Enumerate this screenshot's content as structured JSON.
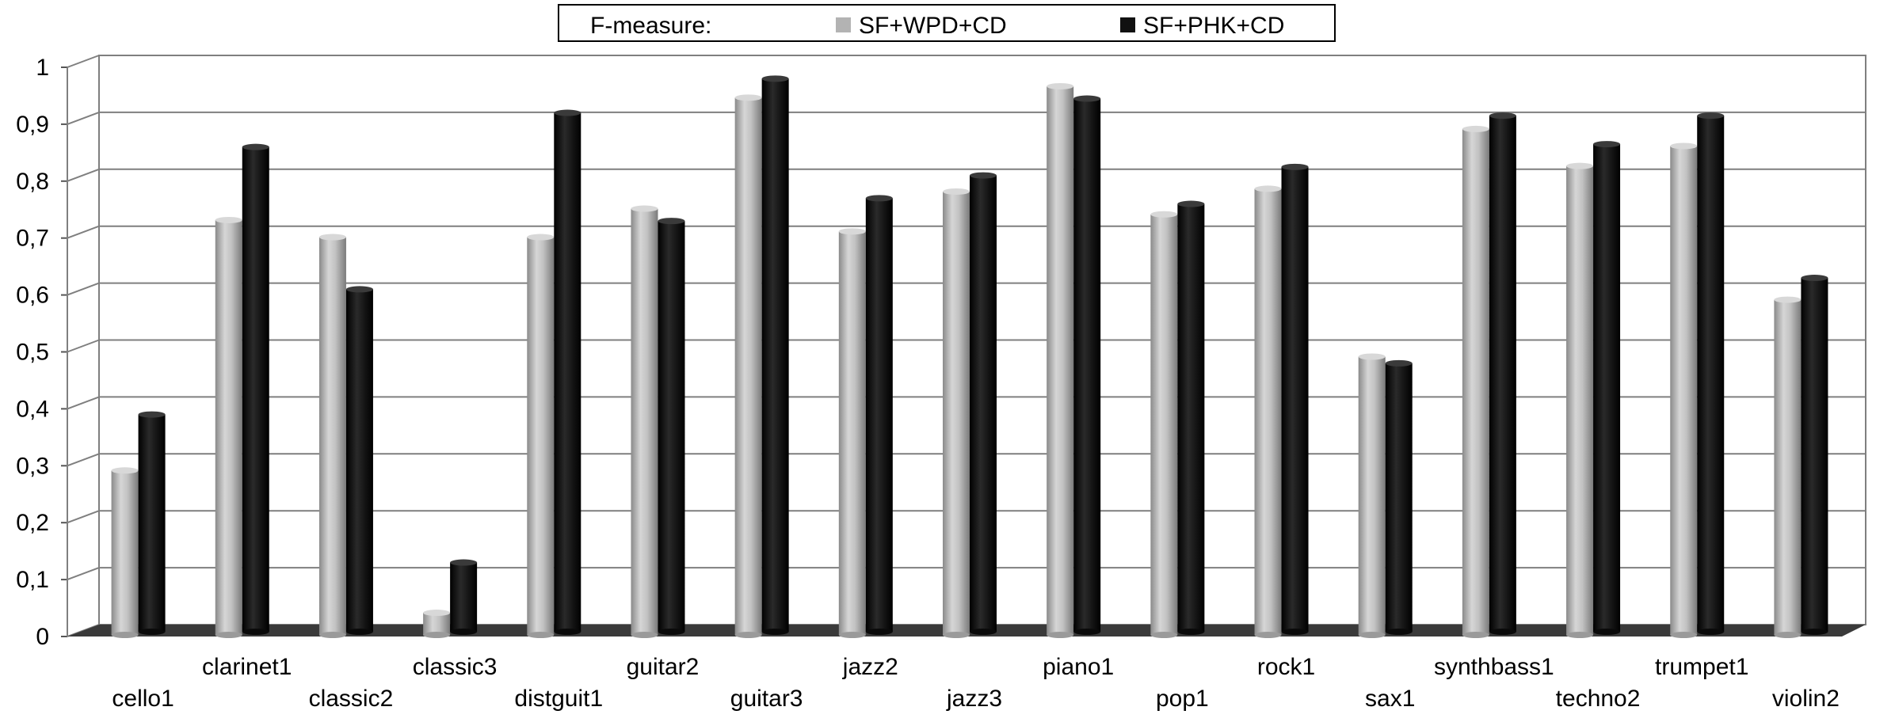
{
  "chart_data": {
    "type": "bar",
    "legend": {
      "label": "F-measure:",
      "placement": "top-center"
    },
    "categories": [
      "cello1",
      "clarinet1",
      "classic2",
      "classic3",
      "distguit1",
      "guitar2",
      "guitar3",
      "jazz2",
      "jazz3",
      "piano1",
      "pop1",
      "rock1",
      "sax1",
      "synthbass1",
      "techno2",
      "trumpet1",
      "violin2"
    ],
    "series": [
      {
        "name": "SF+WPD+CD",
        "color": "#b3b3b3",
        "values": [
          0.3,
          0.74,
          0.71,
          0.05,
          0.71,
          0.76,
          0.955,
          0.72,
          0.79,
          0.975,
          0.75,
          0.795,
          0.5,
          0.9,
          0.835,
          0.87,
          0.6
        ]
      },
      {
        "name": "SF+PHK+CD",
        "color": "#111111",
        "values": [
          0.39,
          0.86,
          0.61,
          0.13,
          0.92,
          0.73,
          0.98,
          0.77,
          0.81,
          0.945,
          0.76,
          0.825,
          0.48,
          0.915,
          0.865,
          0.915,
          0.63
        ]
      }
    ],
    "yticks": [
      "0",
      "0,1",
      "0,2",
      "0,3",
      "0,4",
      "0,5",
      "0,6",
      "0,7",
      "0,8",
      "0,9",
      "1"
    ],
    "ylim": [
      0,
      1
    ],
    "grid": true
  }
}
